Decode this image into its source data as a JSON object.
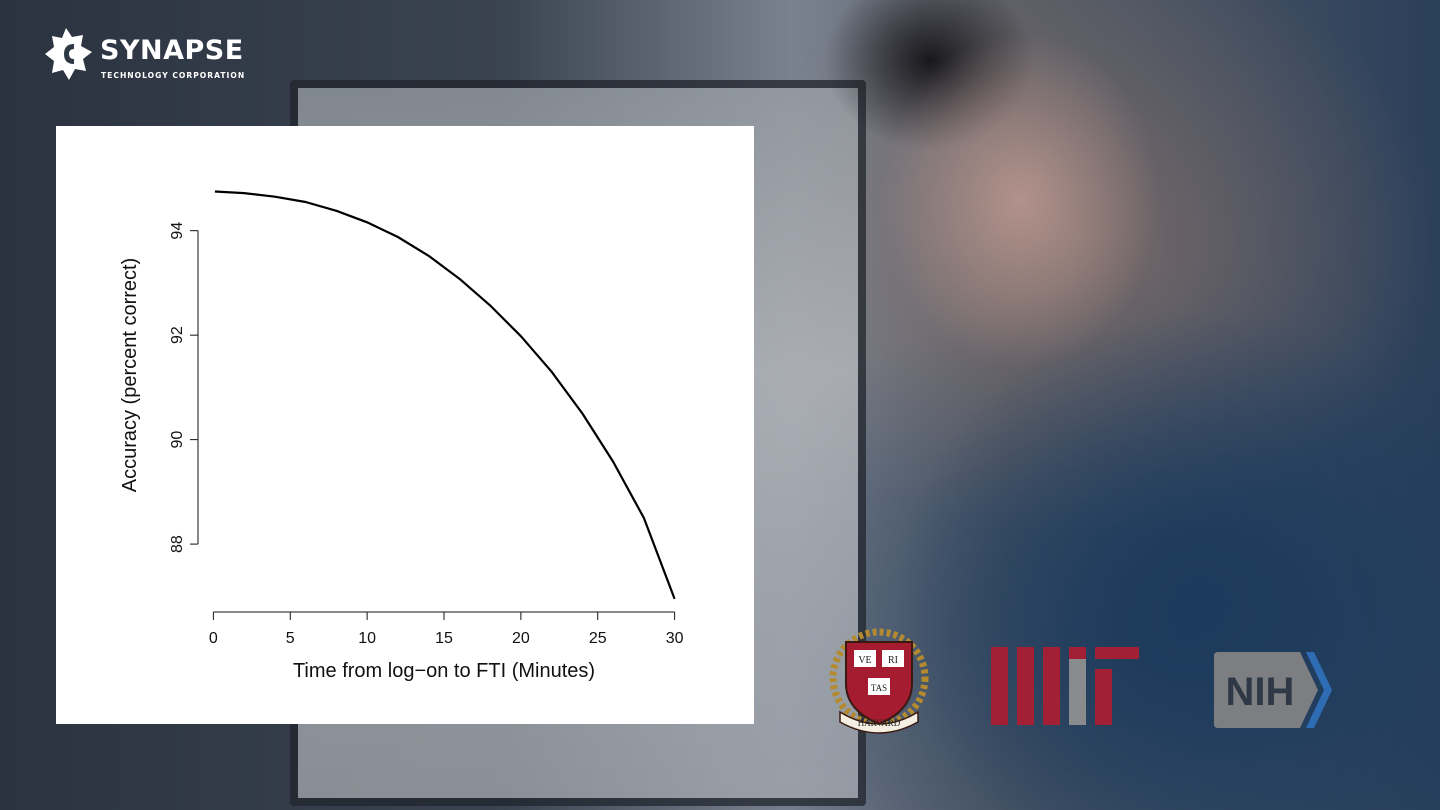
{
  "brand": {
    "name": "SYNAPSE",
    "subtitle": "TECHNOLOGY CORPORATION",
    "logo_icon": "synapse-star-icon"
  },
  "institutions": [
    {
      "name": "Harvard",
      "icon": "harvard-shield-logo",
      "text": [
        "VE",
        "RI",
        "TAS",
        "HARVARD"
      ],
      "colors": {
        "crimson": "#a51c30",
        "gold": "#b38a2f"
      }
    },
    {
      "name": "MIT",
      "icon": "mit-logo",
      "colors": {
        "red": "#a31f34",
        "gray": "#8a8b8c"
      }
    },
    {
      "name": "NIH",
      "icon": "nih-logo",
      "text": "NIH",
      "colors": {
        "gray": "#7c7e82",
        "blue": "#2e6db4"
      }
    }
  ],
  "chart_data": {
    "type": "line",
    "title": "",
    "xlabel": "Time from log−on to FTI (Minutes)",
    "ylabel": "Accuracy (percent correct)",
    "xlim": [
      -1,
      31
    ],
    "ylim": [
      86.7,
      95.2
    ],
    "x_ticks": [
      0,
      5,
      10,
      15,
      20,
      25,
      30
    ],
    "x_tick_labels": [
      "0",
      "5",
      "10",
      "15",
      "20",
      "25",
      "30"
    ],
    "y_ticks": [
      88,
      90,
      92,
      94
    ],
    "y_tick_labels": [
      "88",
      "90",
      "92",
      "94"
    ],
    "grid": false,
    "legend": "none",
    "line_color": "#000000",
    "series": [
      {
        "x": [
          0.1,
          2,
          4,
          6,
          8,
          10,
          12,
          14,
          16,
          18,
          20,
          22,
          24,
          26,
          28,
          30
        ],
        "y": [
          94.75,
          94.72,
          94.65,
          94.55,
          94.38,
          94.16,
          93.88,
          93.52,
          93.08,
          92.57,
          91.98,
          91.3,
          90.5,
          89.58,
          88.5,
          86.95
        ]
      }
    ]
  }
}
